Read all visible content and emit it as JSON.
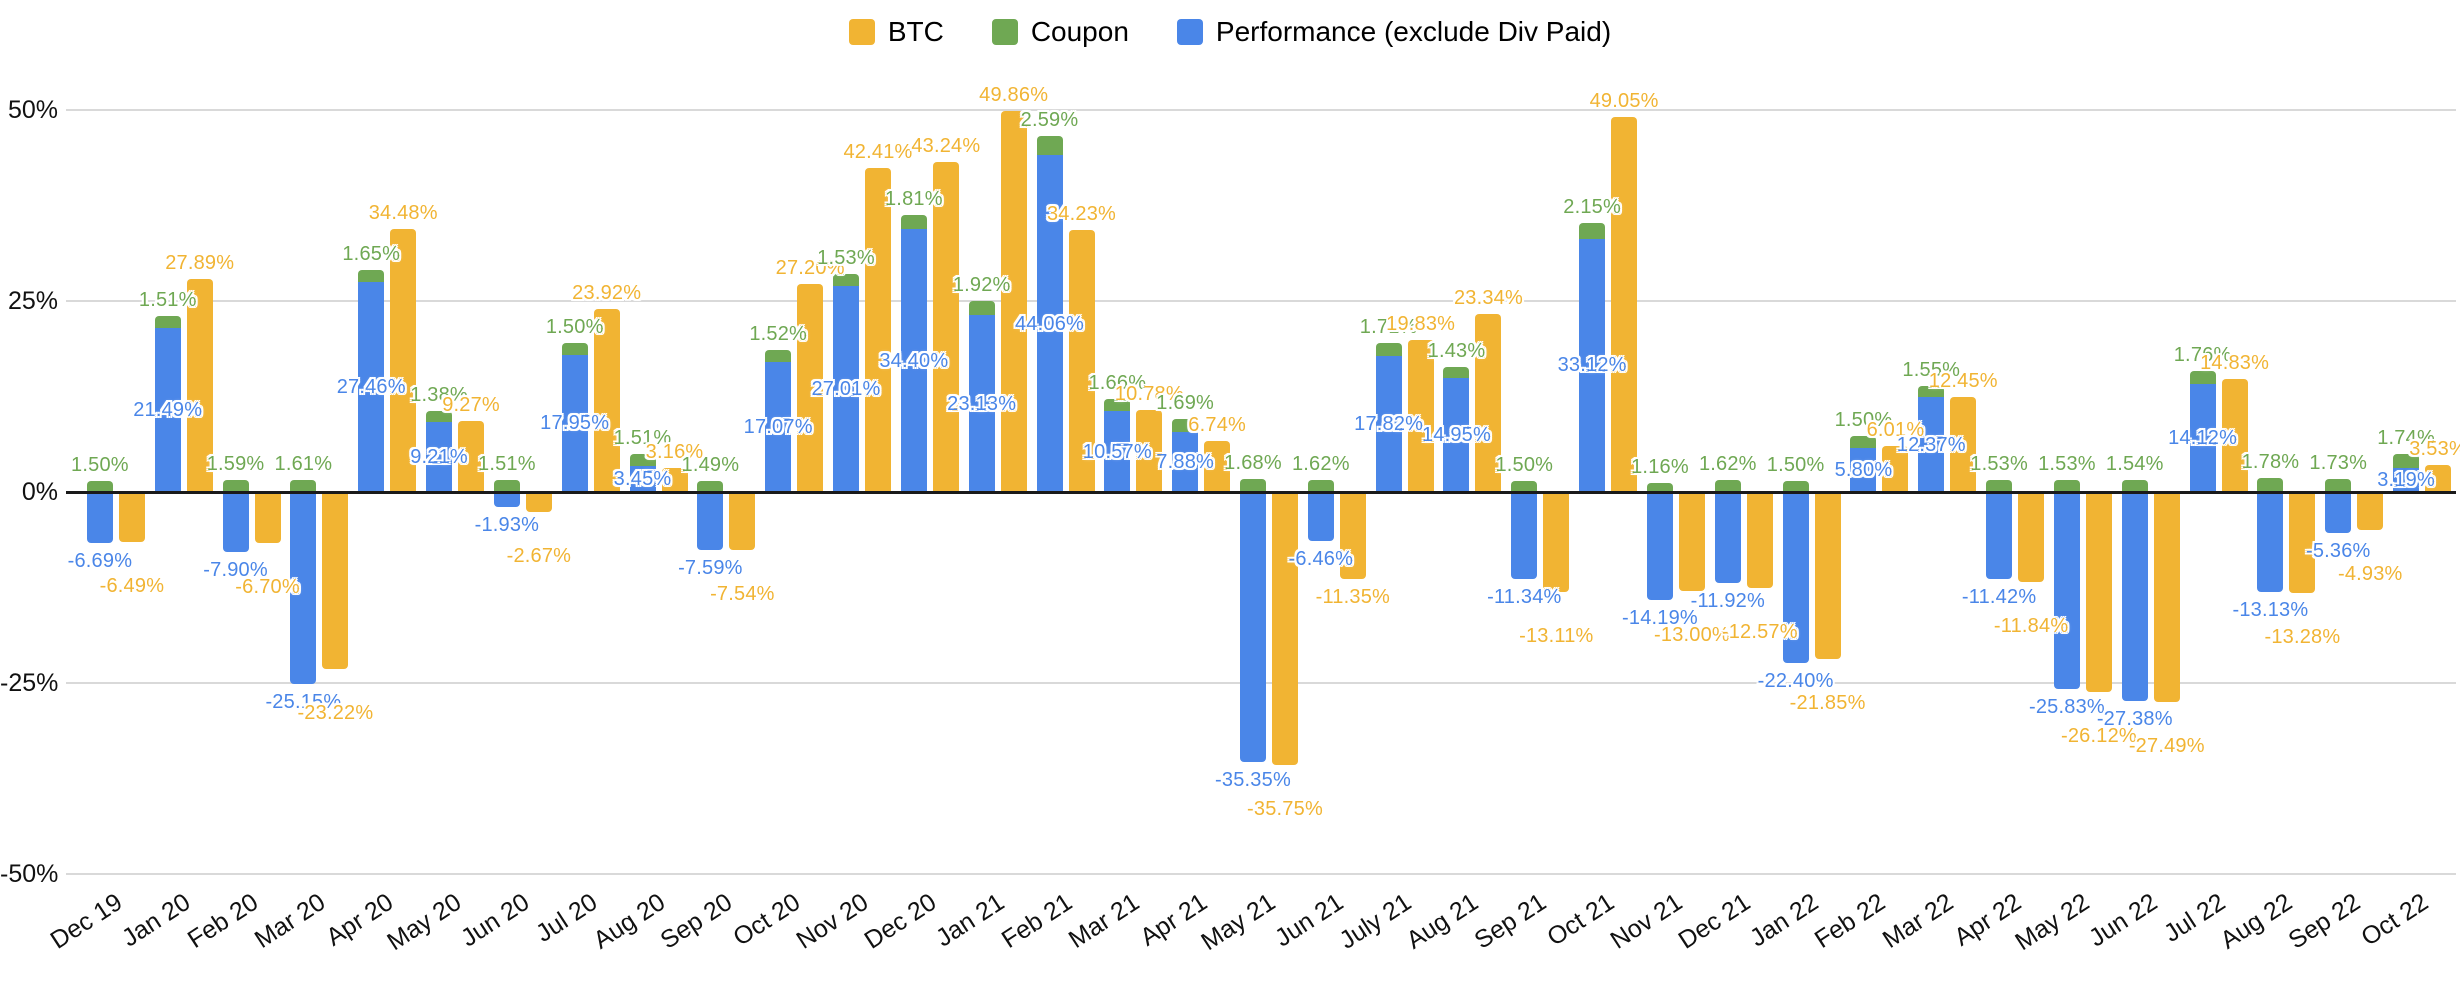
{
  "legend": {
    "items": [
      {
        "label": "BTC",
        "color": "#F1B433"
      },
      {
        "label": "Coupon",
        "color": "#6FA853"
      },
      {
        "label": "Performance (exclude Div Paid)",
        "color": "#4A86E8"
      }
    ]
  },
  "y_axis": {
    "tick_labels": [
      "50%",
      "25%",
      "0%",
      "-25%",
      "-50%"
    ],
    "tick_values": [
      50,
      25,
      0,
      -25,
      -50
    ]
  },
  "chart_data": {
    "type": "bar",
    "title": "",
    "xlabel": "",
    "ylabel": "",
    "ylim": [
      -50,
      50
    ],
    "grid": true,
    "legend_position": "top-center",
    "structure": "Per month two columns: Coupon segment stacked above Performance segment in one column; BTC as separate column",
    "value_label_format": "0.00%",
    "categories": [
      "Dec 19",
      "Jan 20",
      "Feb 20",
      "Mar 20",
      "Apr 20",
      "May 20",
      "Jun 20",
      "Jul 20",
      "Aug 20",
      "Sep 20",
      "Oct 20",
      "Nov 20",
      "Dec 20",
      "Jan 21",
      "Feb 21",
      "Mar 21",
      "Apr 21",
      "May 21",
      "Jun 21",
      "July 21",
      "Aug 21",
      "Sep 21",
      "Oct 21",
      "Nov 21",
      "Dec 21",
      "Jan 22",
      "Feb 22",
      "Mar 22",
      "Apr 22",
      "May 22",
      "Jun 22",
      "Jul 22",
      "Aug 22",
      "Sep 22",
      "Oct 22"
    ],
    "series": [
      {
        "name": "BTC",
        "color": "#F1B433",
        "values": [
          -6.49,
          27.89,
          -6.7,
          -23.22,
          34.48,
          9.27,
          -2.67,
          23.92,
          3.16,
          -7.54,
          27.2,
          42.41,
          43.24,
          49.86,
          34.23,
          10.78,
          6.74,
          -35.75,
          -11.35,
          19.83,
          23.34,
          -13.11,
          49.05,
          -13.0,
          -12.57,
          -21.85,
          6.01,
          12.45,
          -11.84,
          -26.12,
          -27.49,
          14.83,
          -13.28,
          -4.93,
          3.53
        ]
      },
      {
        "name": "Coupon",
        "color": "#6FA853",
        "values": [
          1.5,
          1.51,
          1.59,
          1.61,
          1.65,
          1.38,
          1.51,
          1.5,
          1.51,
          1.49,
          1.52,
          1.53,
          1.81,
          1.92,
          2.59,
          1.66,
          1.69,
          1.68,
          1.62,
          1.71,
          1.43,
          1.5,
          2.15,
          1.16,
          1.62,
          1.5,
          1.5,
          1.55,
          1.53,
          1.53,
          1.54,
          1.76,
          1.78,
          1.73,
          1.74
        ]
      },
      {
        "name": "Performance (exclude Div Paid)",
        "color": "#4A86E8",
        "values": [
          -6.69,
          21.49,
          -7.9,
          -25.15,
          27.46,
          9.21,
          -1.93,
          17.95,
          3.45,
          -7.59,
          17.07,
          27.01,
          34.4,
          23.13,
          44.06,
          10.57,
          7.88,
          -35.35,
          -6.46,
          17.82,
          14.95,
          -11.34,
          33.12,
          -14.19,
          -11.92,
          -22.4,
          5.8,
          12.37,
          -11.42,
          -25.83,
          -27.38,
          14.12,
          -13.13,
          -5.36,
          3.19
        ]
      }
    ]
  }
}
